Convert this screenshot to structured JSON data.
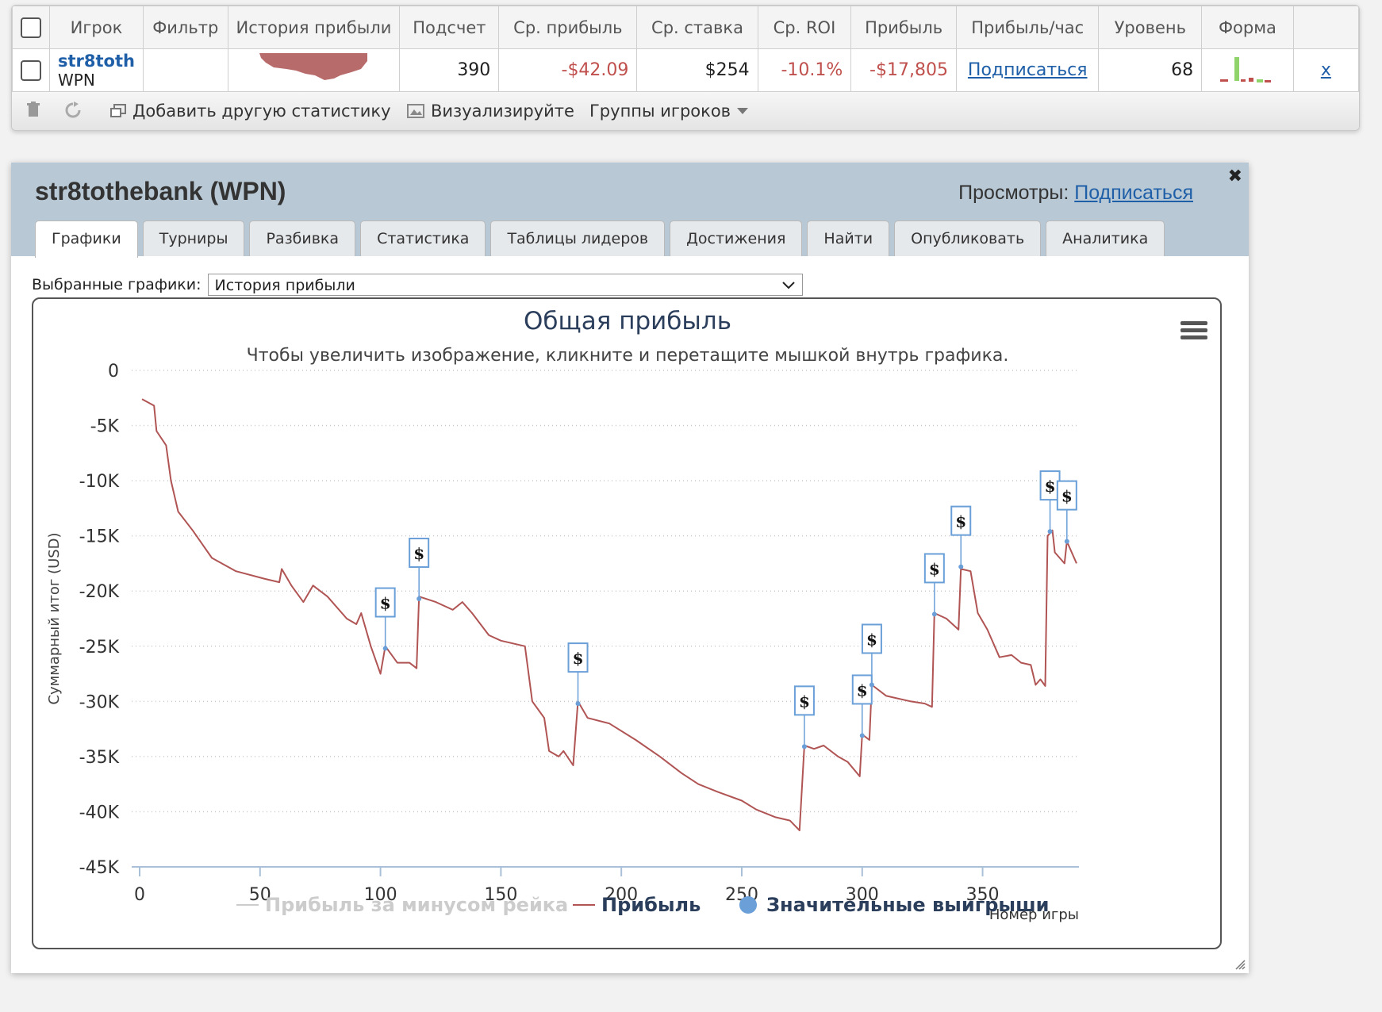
{
  "stats": {
    "headers": [
      "Игрок",
      "Фильтр",
      "История прибыли",
      "Подсчет",
      "Ср. прибыль",
      "Ср. ставка",
      "Ср. ROI",
      "Прибыль",
      "Прибыль/час",
      "Уровень",
      "Форма"
    ],
    "row": {
      "player_name": "str8toth",
      "player_site": "WPN",
      "filter": "",
      "count": "390",
      "avg_profit": "-$42.09",
      "avg_stake": "$254",
      "avg_roi": "-10.1%",
      "profit": "-$17,805",
      "profit_per_hour": "Подписаться",
      "level": "68",
      "remove": "x"
    },
    "toolbar": {
      "add_stats": "Добавить другую статистику",
      "visualize": "Визуализируйте",
      "groups": "Группы игроков"
    }
  },
  "window": {
    "title": "str8tothebank (WPN)",
    "views_label": "Просмотры:",
    "views_link": "Подписаться",
    "close": "✖",
    "tabs": [
      "Графики",
      "Турниры",
      "Разбивка",
      "Статистика",
      "Таблицы лидеров",
      "Достижения",
      "Найти",
      "Опубликовать",
      "Аналитика"
    ],
    "active_tab": 0,
    "select_label": "Выбранные графики:",
    "select_value": "История прибыли"
  },
  "colors": {
    "profit_line": "#b05454",
    "marker": "#6a9fd8",
    "title": "#2b3f5c"
  },
  "chart_data": {
    "type": "line",
    "title": "Общая прибыль",
    "subtitle": "Чтобы увеличить изображение, кликните и перетащите мышкой внутрь графика.",
    "xlabel": "Номер игры",
    "ylabel": "Суммарный итог (USD)",
    "xlim": [
      0,
      390
    ],
    "ylim": [
      -45000,
      0
    ],
    "x_ticks": [
      0,
      50,
      100,
      150,
      200,
      250,
      300,
      350
    ],
    "y_ticks": [
      0,
      -5000,
      -10000,
      -15000,
      -20000,
      -25000,
      -30000,
      -35000,
      -40000,
      -45000
    ],
    "y_tick_labels": [
      "0",
      "-5K",
      "-10K",
      "-15K",
      "-20K",
      "-25K",
      "-30K",
      "-35K",
      "-40K",
      "-45K"
    ],
    "grid": true,
    "legend": [
      "Прибыль за минусом рейка",
      "Прибыль",
      "Значительные выигрыши"
    ],
    "legend_position": "bottom",
    "series": [
      {
        "name": "Прибыль",
        "points": [
          [
            1,
            -2600
          ],
          [
            6,
            -3200
          ],
          [
            7,
            -5500
          ],
          [
            11,
            -6800
          ],
          [
            13,
            -10000
          ],
          [
            16,
            -12800
          ],
          [
            22,
            -14500
          ],
          [
            30,
            -17000
          ],
          [
            40,
            -18200
          ],
          [
            52,
            -18900
          ],
          [
            58,
            -19200
          ],
          [
            59,
            -18000
          ],
          [
            63,
            -19500
          ],
          [
            68,
            -21000
          ],
          [
            72,
            -19500
          ],
          [
            78,
            -20500
          ],
          [
            86,
            -22500
          ],
          [
            90,
            -23000
          ],
          [
            92,
            -22000
          ],
          [
            96,
            -25000
          ],
          [
            100,
            -27500
          ],
          [
            102,
            -25000
          ],
          [
            107,
            -26500
          ],
          [
            112,
            -26500
          ],
          [
            115,
            -27000
          ],
          [
            116,
            -20500
          ],
          [
            123,
            -21000
          ],
          [
            130,
            -21700
          ],
          [
            134,
            -21000
          ],
          [
            138,
            -22000
          ],
          [
            145,
            -24000
          ],
          [
            150,
            -24500
          ],
          [
            160,
            -25000
          ],
          [
            163,
            -30000
          ],
          [
            168,
            -31500
          ],
          [
            170,
            -34500
          ],
          [
            174,
            -35000
          ],
          [
            176,
            -34500
          ],
          [
            180,
            -35800
          ],
          [
            182,
            -30000
          ],
          [
            186,
            -31500
          ],
          [
            195,
            -32000
          ],
          [
            206,
            -33500
          ],
          [
            216,
            -35000
          ],
          [
            225,
            -36500
          ],
          [
            232,
            -37500
          ],
          [
            240,
            -38200
          ],
          [
            250,
            -39000
          ],
          [
            256,
            -39800
          ],
          [
            264,
            -40500
          ],
          [
            270,
            -40800
          ],
          [
            274,
            -41700
          ],
          [
            276,
            -34000
          ],
          [
            280,
            -34300
          ],
          [
            284,
            -34000
          ],
          [
            290,
            -35000
          ],
          [
            294,
            -35500
          ],
          [
            299,
            -36800
          ],
          [
            300,
            -33000
          ],
          [
            303,
            -33500
          ],
          [
            304,
            -28500
          ],
          [
            310,
            -29500
          ],
          [
            320,
            -30000
          ],
          [
            326,
            -30200
          ],
          [
            329,
            -30500
          ],
          [
            330,
            -22000
          ],
          [
            335,
            -22500
          ],
          [
            340,
            -23500
          ],
          [
            341,
            -18000
          ],
          [
            345,
            -18200
          ],
          [
            348,
            -22000
          ],
          [
            352,
            -23500
          ],
          [
            357,
            -26000
          ],
          [
            362,
            -25800
          ],
          [
            366,
            -26500
          ],
          [
            370,
            -26700
          ],
          [
            372,
            -28500
          ],
          [
            374,
            -28000
          ],
          [
            376,
            -28600
          ],
          [
            377,
            -15000
          ],
          [
            379,
            -14500
          ],
          [
            380,
            -16500
          ],
          [
            384,
            -17500
          ],
          [
            385,
            -15500
          ],
          [
            389,
            -17500
          ]
        ]
      }
    ],
    "big_wins": [
      [
        102,
        -25200
      ],
      [
        116,
        -20700
      ],
      [
        182,
        -30200
      ],
      [
        276,
        -34100
      ],
      [
        300,
        -33100
      ],
      [
        304,
        -28500
      ],
      [
        330,
        -22100
      ],
      [
        341,
        -17800
      ],
      [
        378,
        -14600
      ],
      [
        385,
        -15500
      ]
    ],
    "big_win_marker": "$"
  }
}
